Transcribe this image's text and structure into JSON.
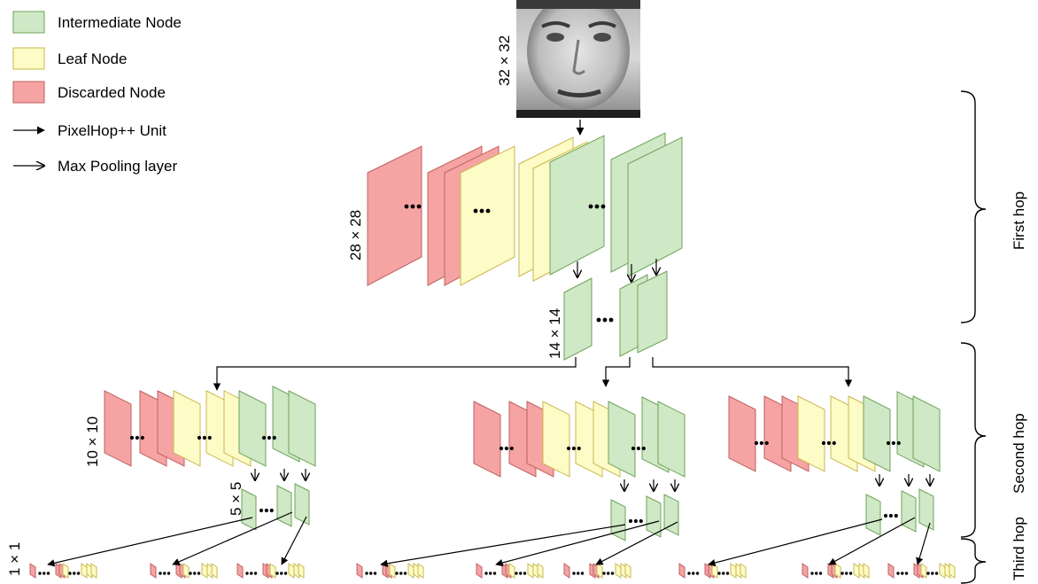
{
  "legend": {
    "intermediate": "Intermediate Node",
    "leaf": "Leaf Node",
    "discarded": "Discarded Node",
    "pixelhop_unit": "PixelHop++ Unit",
    "max_pooling": "Max Pooling layer"
  },
  "dims": {
    "input": "32 × 32",
    "hop1": "28 × 28",
    "pool1": "14 × 14",
    "hop2": "10 × 10",
    "pool2": "5 × 5",
    "hop3": "1 × 1"
  },
  "hops": {
    "first": "First hop",
    "second": "Second hop",
    "third": "Third hop"
  },
  "colors": {
    "intermediate_fill": "#cfe8c5",
    "intermediate_stroke": "#6ea35a",
    "leaf_fill": "#fdfbc6",
    "leaf_stroke": "#c9b84e",
    "discarded_fill": "#f5a3a3",
    "discarded_stroke": "#c06060"
  },
  "input_image": "face photo (grayscale)"
}
